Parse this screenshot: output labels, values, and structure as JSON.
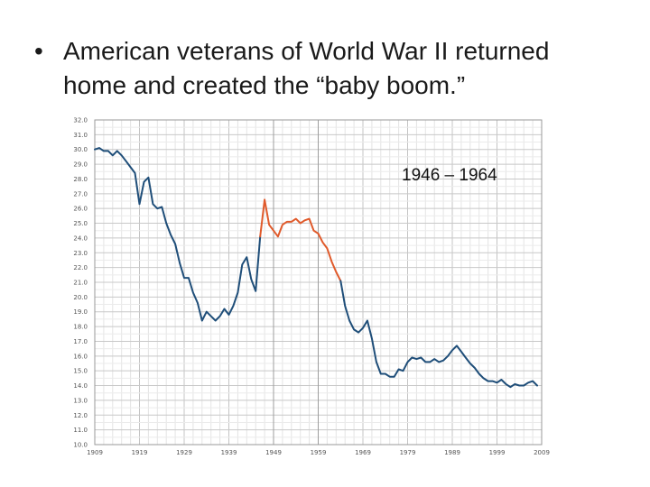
{
  "slide": {
    "bullet_char": "•",
    "bullet_text": "American veterans of World War II returned home and created the “baby boom.”"
  },
  "chart_data": {
    "type": "line",
    "title": "",
    "xlabel": "",
    "ylabel": "",
    "xlim": [
      1909,
      2009
    ],
    "ylim": [
      10.0,
      32.0
    ],
    "grid": true,
    "annotation": "1946 – 1964",
    "x_ticks": [
      "1909",
      "1919",
      "1929",
      "1939",
      "1949",
      "1959",
      "1969",
      "1979",
      "1989",
      "1999",
      "2009"
    ],
    "y_ticks": [
      "10.0",
      "11.0",
      "12.0",
      "13.0",
      "14.0",
      "15.0",
      "16.0",
      "17.0",
      "18.0",
      "19.0",
      "20.0",
      "21.0",
      "22.0",
      "23.0",
      "24.0",
      "25.0",
      "26.0",
      "27.0",
      "28.0",
      "29.0",
      "30.0",
      "31.0",
      "32.0"
    ],
    "series": [
      {
        "name": "",
        "color": "#1f4e79",
        "points": [
          [
            1909,
            30.0
          ],
          [
            1910,
            30.1
          ],
          [
            1911,
            29.9
          ],
          [
            1912,
            29.9
          ],
          [
            1913,
            29.6
          ],
          [
            1914,
            29.9
          ],
          [
            1915,
            29.6
          ],
          [
            1916,
            29.2
          ],
          [
            1917,
            28.8
          ],
          [
            1918,
            28.4
          ],
          [
            1919,
            26.3
          ],
          [
            1920,
            27.8
          ],
          [
            1921,
            28.1
          ],
          [
            1922,
            26.3
          ],
          [
            1923,
            26.0
          ],
          [
            1924,
            26.1
          ],
          [
            1925,
            25.0
          ],
          [
            1926,
            24.2
          ],
          [
            1927,
            23.6
          ],
          [
            1928,
            22.3
          ],
          [
            1929,
            21.3
          ],
          [
            1930,
            21.3
          ],
          [
            1931,
            20.3
          ],
          [
            1932,
            19.6
          ],
          [
            1933,
            18.4
          ],
          [
            1934,
            19.0
          ],
          [
            1935,
            18.7
          ],
          [
            1936,
            18.4
          ],
          [
            1937,
            18.7
          ],
          [
            1938,
            19.2
          ],
          [
            1939,
            18.8
          ],
          [
            1940,
            19.4
          ],
          [
            1941,
            20.3
          ],
          [
            1942,
            22.2
          ],
          [
            1943,
            22.7
          ],
          [
            1944,
            21.2
          ],
          [
            1945,
            20.4
          ],
          [
            1946,
            24.1
          ]
        ]
      },
      {
        "name": "",
        "color": "#e05a2b",
        "points": [
          [
            1946,
            24.1
          ],
          [
            1947,
            26.6
          ],
          [
            1948,
            24.9
          ],
          [
            1949,
            24.5
          ],
          [
            1950,
            24.1
          ],
          [
            1951,
            24.9
          ],
          [
            1952,
            25.1
          ],
          [
            1953,
            25.1
          ],
          [
            1954,
            25.3
          ],
          [
            1955,
            25.0
          ],
          [
            1956,
            25.2
          ],
          [
            1957,
            25.3
          ],
          [
            1958,
            24.5
          ],
          [
            1959,
            24.3
          ],
          [
            1960,
            23.7
          ],
          [
            1961,
            23.3
          ],
          [
            1962,
            22.4
          ],
          [
            1963,
            21.7
          ],
          [
            1964,
            21.1
          ]
        ]
      },
      {
        "name": "",
        "color": "#1f4e79",
        "points": [
          [
            1964,
            21.1
          ],
          [
            1965,
            19.4
          ],
          [
            1966,
            18.4
          ],
          [
            1967,
            17.8
          ],
          [
            1968,
            17.6
          ],
          [
            1969,
            17.9
          ],
          [
            1970,
            18.4
          ],
          [
            1971,
            17.2
          ],
          [
            1972,
            15.6
          ],
          [
            1973,
            14.8
          ],
          [
            1974,
            14.8
          ],
          [
            1975,
            14.6
          ],
          [
            1976,
            14.6
          ],
          [
            1977,
            15.1
          ],
          [
            1978,
            15.0
          ],
          [
            1979,
            15.6
          ],
          [
            1980,
            15.9
          ],
          [
            1981,
            15.8
          ],
          [
            1982,
            15.9
          ],
          [
            1983,
            15.6
          ],
          [
            1984,
            15.6
          ],
          [
            1985,
            15.8
          ],
          [
            1986,
            15.6
          ],
          [
            1987,
            15.7
          ],
          [
            1988,
            16.0
          ],
          [
            1989,
            16.4
          ],
          [
            1990,
            16.7
          ],
          [
            1991,
            16.3
          ],
          [
            1992,
            15.9
          ],
          [
            1993,
            15.5
          ],
          [
            1994,
            15.2
          ],
          [
            1995,
            14.8
          ],
          [
            1996,
            14.5
          ],
          [
            1997,
            14.3
          ],
          [
            1998,
            14.3
          ],
          [
            1999,
            14.2
          ],
          [
            2000,
            14.4
          ],
          [
            2001,
            14.1
          ],
          [
            2002,
            13.9
          ],
          [
            2003,
            14.1
          ],
          [
            2004,
            14.0
          ],
          [
            2005,
            14.0
          ],
          [
            2006,
            14.2
          ],
          [
            2007,
            14.3
          ],
          [
            2008,
            14.0
          ]
        ]
      }
    ]
  }
}
